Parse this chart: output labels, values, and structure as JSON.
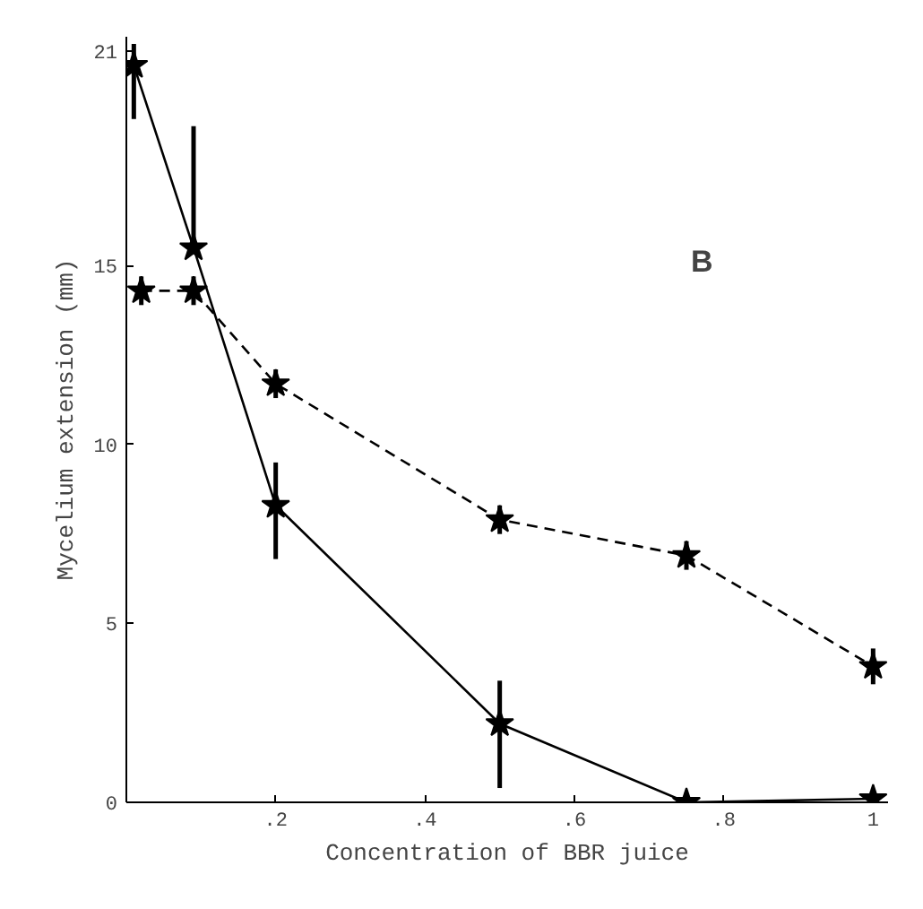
{
  "chart_data": {
    "type": "line",
    "xlabel": "Concentration of BBR juice",
    "ylabel": "Mycelium extension (mm)",
    "xlim": [
      0,
      1.02
    ],
    "ylim": [
      0,
      21.4
    ],
    "xticks": [
      {
        "value": 0.2,
        "label": ".2"
      },
      {
        "value": 0.4,
        "label": ".4"
      },
      {
        "value": 0.6,
        "label": ".6"
      },
      {
        "value": 0.8,
        "label": ".8"
      },
      1
    ],
    "yticks": [
      0,
      5,
      10,
      15,
      21
    ],
    "grid": false,
    "marker": "star",
    "annotations": [
      "B"
    ],
    "series": [
      {
        "color": "#000000",
        "line_style": "solid",
        "x": [
          0.01,
          0.09,
          0.2,
          0.5,
          0.75,
          1
        ],
        "values": [
          20.6,
          15.5,
          8.3,
          2.2,
          0,
          0.1
        ],
        "errors": [
          [
            19.1,
            21.2
          ],
          [
            15.5,
            18.9
          ],
          [
            6.8,
            9.5
          ],
          [
            0.4,
            3.4
          ],
          null,
          null
        ]
      },
      {
        "color": "#000000",
        "line_style": "dashed",
        "x": [
          0.02,
          0.09,
          0.2,
          0.5,
          0.75,
          1
        ],
        "values": [
          14.3,
          14.3,
          11.7,
          7.9,
          6.9,
          3.8
        ],
        "errors": [
          0.4,
          0.4,
          0.4,
          0.4,
          0.4,
          0.5
        ]
      }
    ]
  }
}
